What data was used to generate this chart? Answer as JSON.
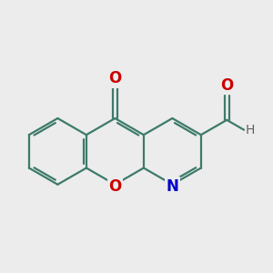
{
  "bg_color": "#ececec",
  "bond_color": "#3d7a6a",
  "bond_width": 1.6,
  "atom_colors": {
    "O": "#cc0000",
    "N": "#0000cc",
    "H": "#606060"
  },
  "figsize": [
    3.0,
    3.0
  ],
  "dpi": 100
}
